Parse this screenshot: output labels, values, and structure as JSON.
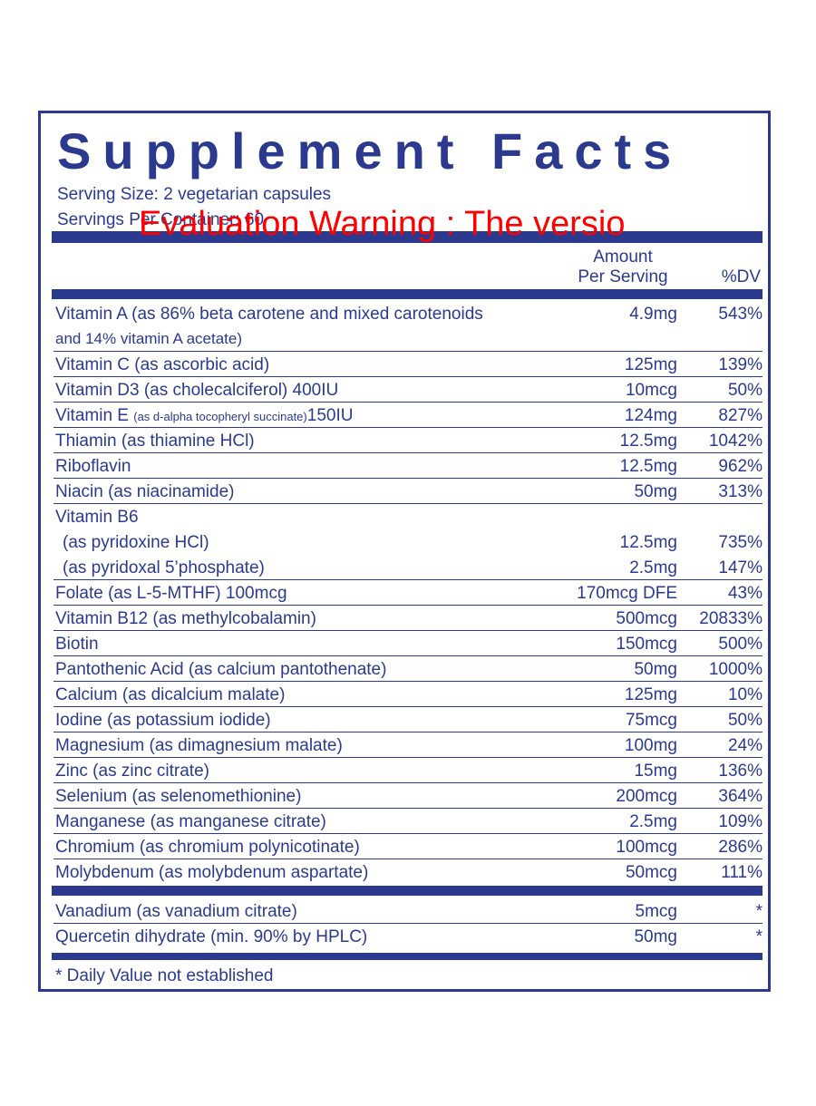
{
  "title": "Supplement Facts",
  "serving_size": "Serving Size: 2 vegetarian capsules",
  "servings_per_container": "Servings Per Container: 60",
  "watermark": "Evaluation Warning : The versio",
  "header": {
    "amount_line1": "Amount",
    "amount_line2": "Per Serving",
    "dv": "%DV"
  },
  "rows": [
    {
      "name": "Vitamin A  (as 86% beta carotene and mixed carotenoids",
      "name2": "and 14% vitamin A acetate)",
      "amount": "4.9mg",
      "dv": "543%"
    },
    {
      "name": "Vitamin C (as ascorbic acid)",
      "amount": "125mg",
      "dv": "139%"
    },
    {
      "name": "Vitamin D3 (as cholecalciferol) 400IU",
      "amount": "10mcg",
      "dv": "50%"
    },
    {
      "name_a": "Vitamin E ",
      "name_b": "(as d-alpha tocopheryl succinate)",
      "name_c": "150IU",
      "amount": "124mg",
      "dv": "827%"
    },
    {
      "name": "Thiamin (as thiamine HCl)",
      "amount": "12.5mg",
      "dv": "1042%"
    },
    {
      "name": "Riboflavin",
      "amount": "12.5mg",
      "dv": "962%"
    },
    {
      "name": "Niacin (as niacinamide)",
      "amount": "50mg",
      "dv": "313%"
    },
    {
      "name": "Vitamin B6",
      "sub1": "(as pyridoxine HCl)",
      "amount1": "12.5mg",
      "dv1": "735%",
      "sub2": "(as pyridoxal 5’phosphate)",
      "amount2": "2.5mg",
      "dv2": "147%"
    },
    {
      "name": "Folate (as L-5-MTHF) 100mcg",
      "amount": "170mcg DFE",
      "dv": "43%"
    },
    {
      "name": "Vitamin B12 (as methylcobalamin)",
      "amount": "500mcg",
      "dv": "20833%"
    },
    {
      "name": "Biotin",
      "amount": "150mcg",
      "dv": "500%"
    },
    {
      "name": "Pantothenic Acid (as calcium pantothenate)",
      "amount": "50mg",
      "dv": "1000%"
    },
    {
      "name": "Calcium (as dicalcium malate)",
      "amount": "125mg",
      "dv": "10%"
    },
    {
      "name": "Iodine (as potassium iodide)",
      "amount": "75mcg",
      "dv": "50%"
    },
    {
      "name": "Magnesium (as dimagnesium malate)",
      "amount": "100mg",
      "dv": "24%"
    },
    {
      "name": "Zinc (as zinc citrate)",
      "amount": "15mg",
      "dv": "136%"
    },
    {
      "name": "Selenium (as selenomethionine)",
      "amount": "200mcg",
      "dv": "364%"
    },
    {
      "name": "Manganese (as manganese citrate)",
      "amount": "2.5mg",
      "dv": "109%"
    },
    {
      "name": "Chromium (as chromium polynicotinate)",
      "amount": "100mcg",
      "dv": "286%"
    },
    {
      "name": "Molybdenum (as molybdenum aspartate)",
      "amount": "50mcg",
      "dv": "111%"
    }
  ],
  "other_rows": [
    {
      "name": "Vanadium (as vanadium citrate)",
      "amount": "5mcg",
      "dv": "*"
    },
    {
      "name": "Quercetin dihydrate (min. 90% by HPLC)",
      "amount": "50mg",
      "dv": "*"
    }
  ],
  "footnote": "* Daily Value not established",
  "colors": {
    "brand_blue": "#2b3a8f",
    "watermark_red": "#ff0000",
    "background": "#ffffff"
  }
}
